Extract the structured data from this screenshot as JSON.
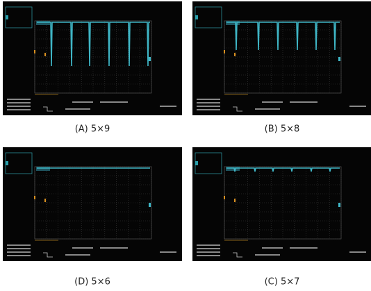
{
  "panels": [
    {
      "caption": "(A) 5×9"
    },
    {
      "caption": "(B) 5×8"
    },
    {
      "caption": "(D) 5×6"
    },
    {
      "caption": "(C) 5×7"
    }
  ]
}
